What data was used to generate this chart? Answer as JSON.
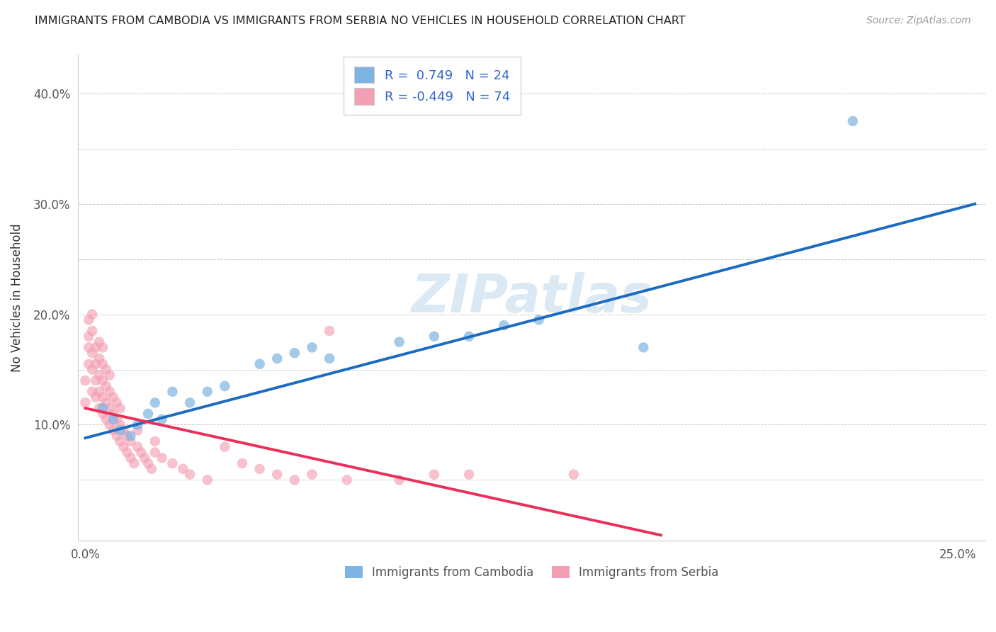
{
  "title": "IMMIGRANTS FROM CAMBODIA VS IMMIGRANTS FROM SERBIA NO VEHICLES IN HOUSEHOLD CORRELATION CHART",
  "source": "Source: ZipAtlas.com",
  "ylabel": "No Vehicles in Household",
  "xlabel": "",
  "watermark": "ZIPatlas",
  "xlim": [
    -0.002,
    0.258
  ],
  "ylim": [
    -0.005,
    0.435
  ],
  "xtick_positions": [
    0.0,
    0.05,
    0.1,
    0.15,
    0.2,
    0.25
  ],
  "ytick_positions": [
    0.0,
    0.05,
    0.1,
    0.15,
    0.2,
    0.25,
    0.3,
    0.35,
    0.4
  ],
  "xtick_labels": [
    "0.0%",
    "",
    "",
    "",
    "",
    "25.0%"
  ],
  "ytick_labels": [
    "",
    "",
    "10.0%",
    "",
    "20.0%",
    "",
    "30.0%",
    "",
    "40.0%"
  ],
  "legend_r_cambodia": "0.749",
  "legend_n_cambodia": "24",
  "legend_r_serbia": "-0.449",
  "legend_n_serbia": "74",
  "color_cambodia": "#7EB4E2",
  "color_serbia": "#F4A0B4",
  "line_color_cambodia": "#1B6BC0",
  "line_color_serbia": "#E8305A",
  "background_color": "#ffffff",
  "grid_color": "#BBBBBB",
  "cambodia_x": [
    0.005,
    0.008,
    0.01,
    0.013,
    0.015,
    0.018,
    0.02,
    0.022,
    0.025,
    0.03,
    0.035,
    0.04,
    0.05,
    0.055,
    0.06,
    0.065,
    0.07,
    0.09,
    0.1,
    0.11,
    0.12,
    0.13,
    0.16,
    0.22
  ],
  "cambodia_y": [
    0.115,
    0.105,
    0.095,
    0.09,
    0.1,
    0.11,
    0.12,
    0.105,
    0.13,
    0.12,
    0.13,
    0.135,
    0.155,
    0.16,
    0.165,
    0.17,
    0.16,
    0.175,
    0.18,
    0.18,
    0.19,
    0.195,
    0.17,
    0.375
  ],
  "serbia_x": [
    0.0,
    0.0,
    0.001,
    0.001,
    0.001,
    0.001,
    0.002,
    0.002,
    0.002,
    0.002,
    0.002,
    0.003,
    0.003,
    0.003,
    0.003,
    0.004,
    0.004,
    0.004,
    0.004,
    0.004,
    0.005,
    0.005,
    0.005,
    0.005,
    0.005,
    0.006,
    0.006,
    0.006,
    0.006,
    0.007,
    0.007,
    0.007,
    0.007,
    0.008,
    0.008,
    0.008,
    0.009,
    0.009,
    0.009,
    0.01,
    0.01,
    0.01,
    0.011,
    0.011,
    0.012,
    0.012,
    0.013,
    0.013,
    0.014,
    0.015,
    0.015,
    0.016,
    0.017,
    0.018,
    0.019,
    0.02,
    0.02,
    0.022,
    0.025,
    0.028,
    0.03,
    0.035,
    0.04,
    0.045,
    0.05,
    0.055,
    0.06,
    0.065,
    0.07,
    0.075,
    0.09,
    0.1,
    0.11,
    0.14
  ],
  "serbia_y": [
    0.12,
    0.14,
    0.155,
    0.17,
    0.18,
    0.195,
    0.13,
    0.15,
    0.165,
    0.185,
    0.2,
    0.125,
    0.14,
    0.155,
    0.17,
    0.115,
    0.13,
    0.145,
    0.16,
    0.175,
    0.11,
    0.125,
    0.14,
    0.155,
    0.17,
    0.105,
    0.12,
    0.135,
    0.15,
    0.1,
    0.115,
    0.13,
    0.145,
    0.095,
    0.11,
    0.125,
    0.09,
    0.105,
    0.12,
    0.085,
    0.1,
    0.115,
    0.08,
    0.095,
    0.075,
    0.09,
    0.07,
    0.085,
    0.065,
    0.08,
    0.095,
    0.075,
    0.07,
    0.065,
    0.06,
    0.075,
    0.085,
    0.07,
    0.065,
    0.06,
    0.055,
    0.05,
    0.08,
    0.065,
    0.06,
    0.055,
    0.05,
    0.055,
    0.185,
    0.05,
    0.05,
    0.055,
    0.055,
    0.055
  ],
  "cambodia_line_x0": 0.0,
  "cambodia_line_y0": 0.088,
  "cambodia_line_x1": 0.255,
  "cambodia_line_y1": 0.3,
  "serbia_line_x0": 0.0,
  "serbia_line_y0": 0.115,
  "serbia_line_x1": 0.165,
  "serbia_line_y1": 0.0
}
